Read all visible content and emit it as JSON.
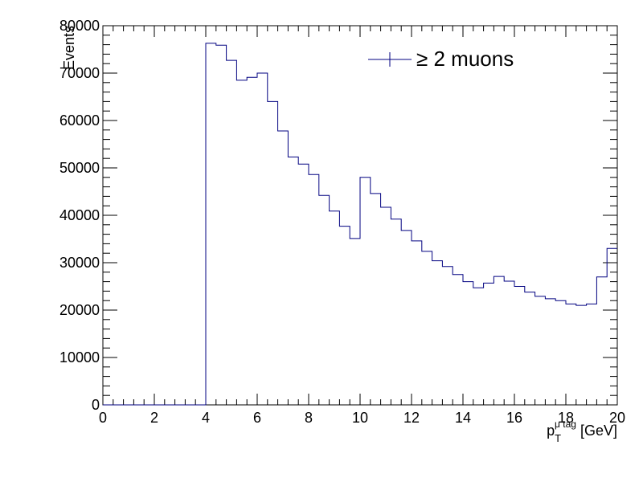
{
  "chart_data": {
    "type": "histogram",
    "title": "",
    "xlabel": {
      "main": "p",
      "sub": "T",
      "sup": "μ tag",
      "unit": " [GeV]"
    },
    "ylabel": "Events",
    "xlim": [
      0,
      20
    ],
    "ylim": [
      0,
      80000
    ],
    "x_ticks": [
      0,
      2,
      4,
      6,
      8,
      10,
      12,
      14,
      16,
      18,
      20
    ],
    "y_ticks": [
      0,
      10000,
      20000,
      30000,
      40000,
      50000,
      60000,
      70000,
      80000
    ],
    "bin_width": 0.4,
    "bin_edges_start": 0,
    "series": [
      {
        "name": "≥ 2 muons",
        "color": "#000080",
        "values": [
          0,
          0,
          0,
          0,
          0,
          0,
          0,
          0,
          0,
          0,
          76300,
          75900,
          72700,
          68500,
          69100,
          70000,
          64000,
          57800,
          52300,
          50800,
          48600,
          44200,
          40900,
          37700,
          35100,
          48000,
          44600,
          41700,
          39200,
          36800,
          34600,
          32400,
          30400,
          29200,
          27500,
          26000,
          24700,
          25700,
          27100,
          26100,
          25000,
          23800,
          22900,
          22400,
          22000,
          21300,
          21000,
          21300,
          27000,
          33000
        ]
      }
    ],
    "legend": {
      "position": "top-right",
      "label": "≥ 2 muons"
    },
    "grid": false
  }
}
